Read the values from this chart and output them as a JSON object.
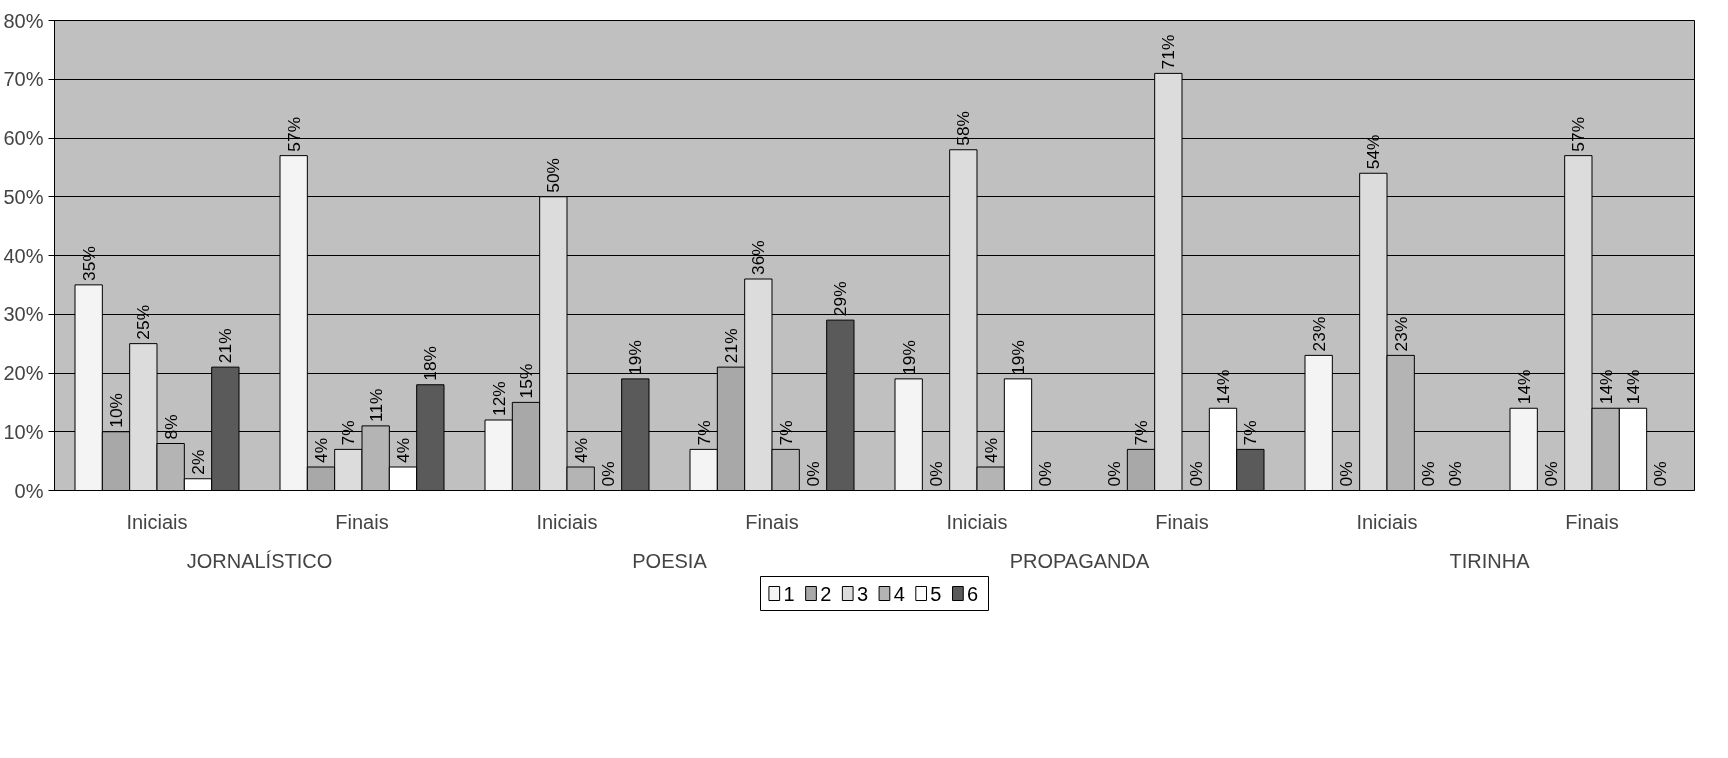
{
  "chart_data": {
    "type": "bar",
    "categories": [
      "Iniciais",
      "Finais",
      "Iniciais",
      "Finais",
      "Iniciais",
      "Finais",
      "Iniciais",
      "Finais"
    ],
    "annotations": [
      "JORNALÍSTICO",
      "POESIA",
      "PROPAGANDA",
      "TIRINHA"
    ],
    "ylim": [
      0,
      80
    ],
    "yticks": [
      {
        "value": 0,
        "label": "0%"
      },
      {
        "value": 10,
        "label": "10%"
      },
      {
        "value": 20,
        "label": "20%"
      },
      {
        "value": 30,
        "label": "30%"
      },
      {
        "value": 40,
        "label": "40%"
      },
      {
        "value": 50,
        "label": "50%"
      },
      {
        "value": 60,
        "label": "60%"
      },
      {
        "value": 70,
        "label": "70%"
      },
      {
        "value": 80,
        "label": "80%"
      }
    ],
    "grid": "y",
    "legend": "bottom",
    "series": [
      {
        "name": "1",
        "color": "#f4f4f4",
        "values": [
          35,
          57,
          12,
          7,
          19,
          0,
          23,
          14
        ],
        "value_labels": [
          "35%",
          "57%",
          "12%",
          "7%",
          "19%",
          "0%",
          "23%",
          "14%"
        ]
      },
      {
        "name": "2",
        "color": "#a8a8a8",
        "values": [
          10,
          4,
          15,
          21,
          0,
          7,
          0,
          0
        ],
        "value_labels": [
          "10%",
          "4%",
          "15%",
          "21%",
          "0%",
          "7%",
          "0%",
          "0%"
        ]
      },
      {
        "name": "3",
        "color": "#dcdcdc",
        "values": [
          25,
          7,
          50,
          36,
          58,
          71,
          54,
          57
        ],
        "value_labels": [
          "25%",
          "7%",
          "50%",
          "36%",
          "58%",
          "71%",
          "54%",
          "57%"
        ]
      },
      {
        "name": "4",
        "color": "#b4b4b4",
        "values": [
          8,
          11,
          4,
          7,
          4,
          0,
          23,
          14
        ],
        "value_labels": [
          "8%",
          "11%",
          "4%",
          "7%",
          "4%",
          "0%",
          "23%",
          "14%"
        ]
      },
      {
        "name": "5",
        "color": "#ffffff",
        "values": [
          2,
          4,
          0,
          0,
          19,
          14,
          0,
          14
        ],
        "value_labels": [
          "2%",
          "4%",
          "0%",
          "0%",
          "19%",
          "14%",
          "0%",
          "14%"
        ]
      },
      {
        "name": "6",
        "color": "#5a5a5a",
        "values": [
          21,
          18,
          19,
          29,
          0,
          7,
          0,
          0
        ],
        "value_labels": [
          "21%",
          "18%",
          "19%",
          "29%",
          "0%",
          "7%",
          "0%",
          "0%"
        ]
      }
    ]
  }
}
